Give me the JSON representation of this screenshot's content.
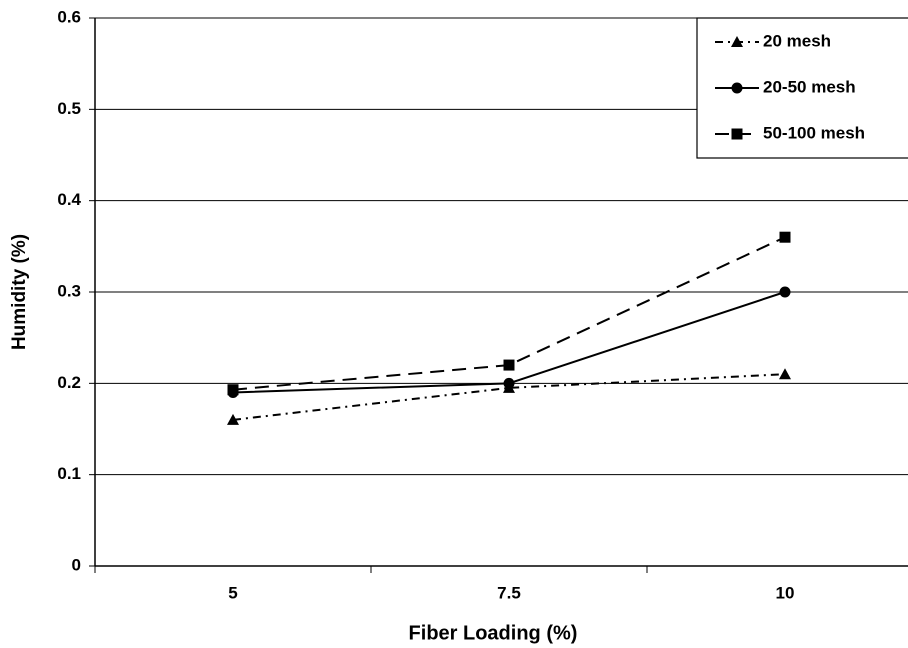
{
  "chart_data": {
    "type": "line",
    "xlabel": "Fiber Loading (%)",
    "ylabel": "Humidity (%)",
    "categories": [
      "5",
      "7.5",
      "10"
    ],
    "series": [
      {
        "name": "20 mesh",
        "color": "#000000",
        "marker": "triangle",
        "dash": "dashdot",
        "values": [
          0.16,
          0.195,
          0.21
        ]
      },
      {
        "name": "20-50 mesh",
        "color": "#000000",
        "marker": "circle",
        "dash": "solid",
        "values": [
          0.19,
          0.2,
          0.3
        ]
      },
      {
        "name": "50-100 mesh",
        "color": "#000000",
        "marker": "square",
        "dash": "dashed",
        "values": [
          0.193,
          0.22,
          0.36
        ]
      }
    ],
    "ylim": [
      0,
      0.6
    ],
    "yticks": [
      0,
      0.1,
      0.2,
      0.3,
      0.4,
      0.5,
      0.6
    ],
    "grid": true,
    "legend": "top-right"
  }
}
